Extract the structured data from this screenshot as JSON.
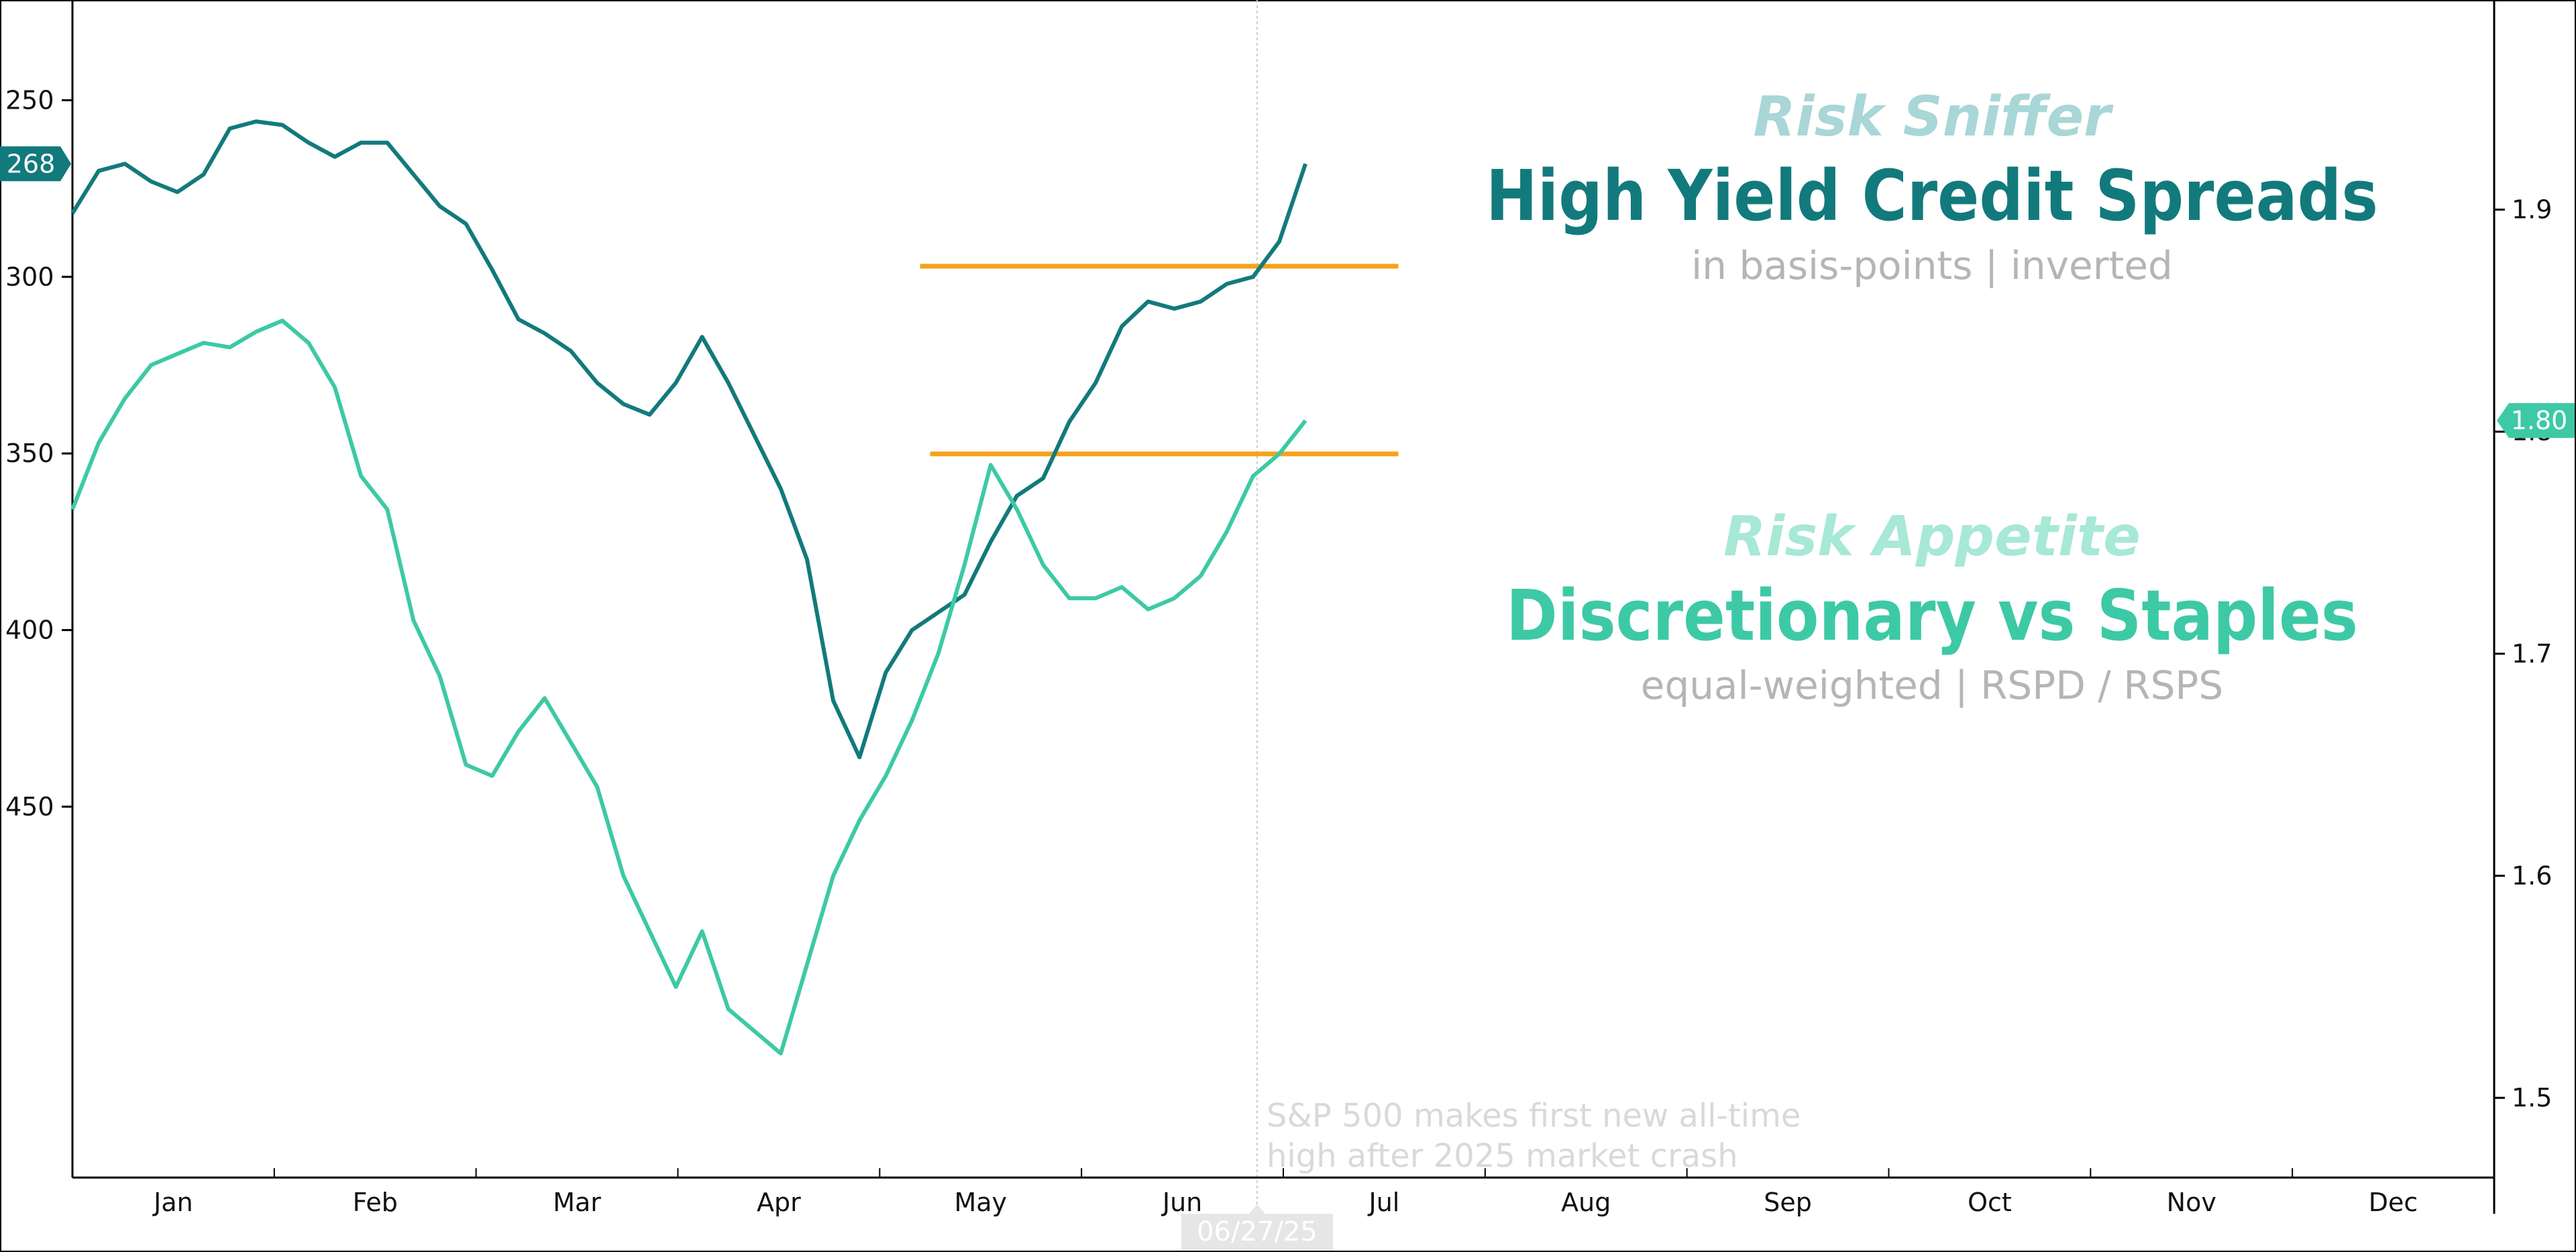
{
  "colors": {
    "credit": "#127a7c",
    "ratio": "#3dc9a6",
    "resistance": "#f5a21a",
    "muted_text": "#b5b5b5",
    "credit_top": "#a9d6d6",
    "ratio_top": "#a7e8d6",
    "axis": "#000000",
    "annotation": "#d9d9d9",
    "date_badge": "#e6e6e6",
    "vline": "#cccccc"
  },
  "titles": {
    "credit_top": "Risk Sniffer",
    "credit_main": "High Yield Credit Spreads",
    "credit_sub": "in basis-points  |  inverted",
    "ratio_top": "Risk Appetite",
    "ratio_main": "Discretionary vs Staples",
    "ratio_sub": "equal-weighted  |  RSPD / RSPS"
  },
  "annotation": {
    "line1": "S&P 500 makes first new all-time",
    "line2": "high after 2025 market crash"
  },
  "chart_data": {
    "type": "line",
    "x_axis": {
      "tick_labels": [
        "Jan",
        "Feb",
        "Mar",
        "Apr",
        "May",
        "Jun",
        "Jul",
        "Aug",
        "Sep",
        "Oct",
        "Nov",
        "Dec"
      ],
      "range_months": [
        0,
        12
      ],
      "highlight_date_label": "06/27/25",
      "highlight_date_month": 5.87
    },
    "y_left": {
      "label": "",
      "inverted": true,
      "range": [
        222,
        555
      ],
      "ticks": [
        250,
        300,
        350,
        400,
        450
      ],
      "last_value_label": "268"
    },
    "y_right": {
      "label": "",
      "range": [
        1.4641,
        1.9938
      ],
      "ticks": [
        1.5,
        1.6,
        1.7,
        1.8,
        1.9
      ],
      "tick_labels": [
        "1.5",
        "1.6",
        "1.7",
        "1.8",
        "1.9"
      ],
      "last_value_label": "1.80"
    },
    "series": [
      {
        "name": "High Yield Credit Spreads",
        "axis": "left",
        "x_months": [
          0.0,
          0.13,
          0.26,
          0.39,
          0.52,
          0.65,
          0.78,
          0.91,
          1.04,
          1.17,
          1.3,
          1.43,
          1.56,
          1.69,
          1.82,
          1.95,
          2.08,
          2.21,
          2.34,
          2.47,
          2.6,
          2.73,
          2.86,
          2.99,
          3.12,
          3.25,
          3.38,
          3.51,
          3.64,
          3.77,
          3.9,
          4.03,
          4.16,
          4.29,
          4.42,
          4.55,
          4.68,
          4.81,
          4.94,
          5.07,
          5.2,
          5.33,
          5.46,
          5.59,
          5.72,
          5.85,
          5.98,
          6.11
        ],
        "values": [
          282,
          270,
          268,
          273,
          276,
          271,
          258,
          256,
          257,
          262,
          266,
          262,
          262,
          271,
          280,
          285,
          298,
          312,
          316,
          321,
          330,
          336,
          339,
          330,
          317,
          330,
          345,
          360,
          380,
          420,
          436,
          412,
          400,
          395,
          390,
          375,
          362,
          357,
          341,
          330,
          314,
          307,
          309,
          307,
          302,
          300,
          290,
          268
        ]
      },
      {
        "name": "Discretionary vs Staples",
        "axis": "right",
        "x_months": [
          0.0,
          0.13,
          0.26,
          0.39,
          0.52,
          0.65,
          0.78,
          0.91,
          1.04,
          1.17,
          1.3,
          1.43,
          1.56,
          1.69,
          1.82,
          1.95,
          2.08,
          2.21,
          2.34,
          2.47,
          2.6,
          2.73,
          2.86,
          2.99,
          3.12,
          3.25,
          3.38,
          3.51,
          3.64,
          3.77,
          3.9,
          4.03,
          4.16,
          4.29,
          4.42,
          4.55,
          4.68,
          4.81,
          4.94,
          5.07,
          5.2,
          5.33,
          5.46,
          5.59,
          5.72,
          5.85,
          5.98,
          6.11
        ],
        "values": [
          1.765,
          1.795,
          1.815,
          1.83,
          1.835,
          1.84,
          1.838,
          1.845,
          1.85,
          1.84,
          1.82,
          1.78,
          1.765,
          1.715,
          1.69,
          1.65,
          1.645,
          1.665,
          1.68,
          1.66,
          1.64,
          1.6,
          1.575,
          1.55,
          1.575,
          1.54,
          1.53,
          1.52,
          1.56,
          1.6,
          1.625,
          1.645,
          1.67,
          1.7,
          1.74,
          1.785,
          1.765,
          1.74,
          1.725,
          1.725,
          1.73,
          1.72,
          1.725,
          1.735,
          1.755,
          1.78,
          1.79,
          1.805
        ]
      }
    ],
    "resistance_lines": [
      {
        "axis": "left",
        "value": 297,
        "x_start_month": 4.2,
        "x_end_month": 6.57
      },
      {
        "axis": "right",
        "value": 1.79,
        "x_start_month": 4.25,
        "x_end_month": 6.57
      }
    ]
  }
}
